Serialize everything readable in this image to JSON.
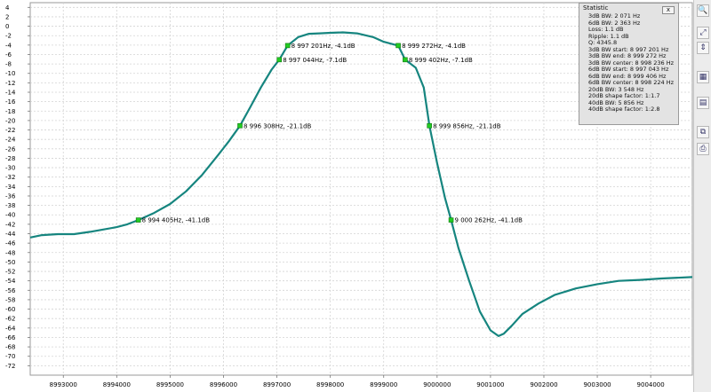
{
  "chart_data": {
    "type": "line",
    "title": "",
    "xlabel": "",
    "ylabel": "",
    "xlim": [
      8992380,
      9004780
    ],
    "ylim": [
      -74,
      5
    ],
    "grid": true,
    "y_ticks": [
      4,
      2,
      0,
      -2,
      -4,
      -6,
      -8,
      -10,
      -12,
      -14,
      -16,
      -18,
      -20,
      -22,
      -24,
      -26,
      -28,
      -30,
      -32,
      -34,
      -36,
      -38,
      -40,
      -42,
      -44,
      -46,
      -48,
      -50,
      -52,
      -54,
      -56,
      -58,
      -60,
      -62,
      -64,
      -66,
      -68,
      -70,
      -72
    ],
    "x_ticks": [
      8993000,
      8994000,
      8995000,
      8996000,
      8997000,
      8998000,
      8999000,
      9000000,
      9001000,
      9002000,
      9003000,
      9004000
    ],
    "x_tick_labels": [
      "8993000",
      "8994000",
      "8995000",
      "8996000",
      "8997000",
      "8998000",
      "8999000",
      "9000000",
      "9001000",
      "9002000",
      "9003000",
      "9004000"
    ],
    "series": [
      {
        "color": "#16857f",
        "x": [
          8992380,
          8992600,
          8992900,
          8993200,
          8993500,
          8993700,
          8994000,
          8994200,
          8994405,
          8994700,
          8995000,
          8995300,
          8995600,
          8995900,
          8996100,
          8996308,
          8996500,
          8996700,
          8996900,
          8997044,
          8997201,
          8997400,
          8997600,
          8997800,
          8998000,
          8998236,
          8998500,
          8998800,
          8999000,
          8999100,
          8999272,
          8999402,
          8999600,
          8999750,
          8999856,
          9000000,
          9000150,
          9000262,
          9000400,
          9000600,
          9000800,
          9001000,
          9001150,
          9001250,
          9001400,
          9001600,
          9001900,
          9002200,
          9002600,
          9003000,
          9003400,
          9003800,
          9004200,
          9004780
        ],
        "y": [
          -44.8,
          -44.3,
          -44.1,
          -44.1,
          -43.6,
          -43.2,
          -42.6,
          -42.0,
          -41.1,
          -39.6,
          -37.7,
          -35.0,
          -31.5,
          -27.3,
          -24.4,
          -21.1,
          -17.2,
          -13.0,
          -9.2,
          -7.1,
          -4.1,
          -2.3,
          -1.6,
          -1.5,
          -1.4,
          -1.3,
          -1.5,
          -2.3,
          -3.3,
          -3.6,
          -4.1,
          -7.1,
          -8.8,
          -13.0,
          -21.1,
          -29.0,
          -36.5,
          -41.1,
          -47.0,
          -54.0,
          -60.5,
          -64.5,
          -65.7,
          -65.2,
          -63.5,
          -61.0,
          -58.8,
          -57.0,
          -55.6,
          -54.7,
          -54.0,
          -53.8,
          -53.5,
          -53.2
        ]
      }
    ],
    "markers": [
      {
        "x": 8994405,
        "y": -41.1,
        "label": "8 994 405Hz, -41.1dB"
      },
      {
        "x": 8996308,
        "y": -21.1,
        "label": "8 996 308Hz, -21.1dB"
      },
      {
        "x": 8997044,
        "y": -7.1,
        "label": "8 997 044Hz, -7.1dB"
      },
      {
        "x": 8997201,
        "y": -4.1,
        "label": "8 997 201Hz, -4.1dB"
      },
      {
        "x": 8999272,
        "y": -4.1,
        "label": "8 999 272Hz, -4.1dB"
      },
      {
        "x": 8999402,
        "y": -7.1,
        "label": "8 999 402Hz, -7.1dB"
      },
      {
        "x": 8999856,
        "y": -21.1,
        "label": "8 999 856Hz, -21.1dB"
      },
      {
        "x": 9000262,
        "y": -41.1,
        "label": "9 000 262Hz, -41.1dB"
      }
    ],
    "line_color": "#16857f",
    "marker_color": "#22cc22",
    "grid_color": "#d4d4d4"
  },
  "statistic_panel": {
    "title": "Statistic",
    "close_label": "x",
    "lines": [
      "3dB BW: 2 071 Hz",
      "6dB BW: 2 363 Hz",
      "Loss: 1.1 dB",
      "Ripple: 1.1 dB",
      "Q: 4345.8",
      "3dB BW start: 8 997 201 Hz",
      "3dB BW end: 8 999 272 Hz",
      "3dB BW center: 8 998 236 Hz",
      "6dB BW start: 8 997 043 Hz",
      "6dB BW end: 8 999 406 Hz",
      "6dB BW center: 8 998 224 Hz",
      "20dB BW: 3 548 Hz",
      "20dB shape factor: 1:1.7",
      "40dB BW: 5 856 Hz",
      "40dB shape factor: 1:2.8"
    ]
  },
  "toolbar": {
    "buttons": [
      {
        "name": "zoom-icon",
        "glyph": "🔍"
      },
      {
        "name": "fit-view-icon",
        "glyph": "⤢"
      },
      {
        "name": "vertical-scale-icon",
        "glyph": "⇕"
      },
      {
        "name": "chart-settings-icon",
        "glyph": "▦"
      },
      {
        "name": "export-image-icon",
        "glyph": "▤"
      },
      {
        "name": "copy-icon",
        "glyph": "⧉"
      },
      {
        "name": "print-icon",
        "glyph": "⎙"
      }
    ]
  }
}
